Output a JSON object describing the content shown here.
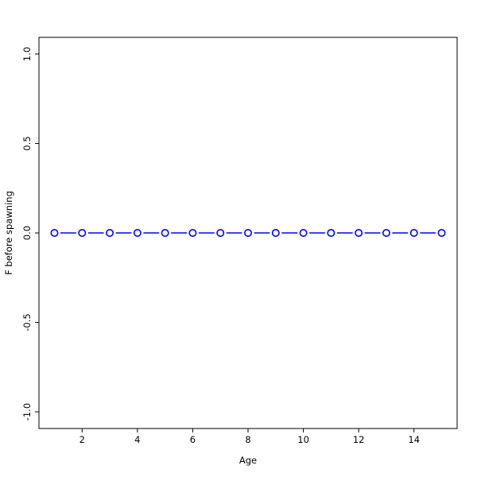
{
  "chart_data": {
    "type": "line",
    "title": "",
    "xlabel": "Age",
    "ylabel": "F before spawning",
    "x": [
      1,
      2,
      3,
      4,
      5,
      6,
      7,
      8,
      9,
      10,
      11,
      12,
      13,
      14,
      15
    ],
    "series": [
      {
        "name": "F before spawning",
        "values": [
          0,
          0,
          0,
          0,
          0,
          0,
          0,
          0,
          0,
          0,
          0,
          0,
          0,
          0,
          0
        ]
      }
    ],
    "xticks": [
      2,
      4,
      6,
      8,
      10,
      12,
      14
    ],
    "xtick_labels": [
      "2",
      "4",
      "6",
      "8",
      "10",
      "12",
      "14"
    ],
    "yticks": [
      -1.0,
      -0.5,
      0.0,
      0.5,
      1.0
    ],
    "ytick_labels": [
      "-1.0",
      "-0.5",
      "0.0",
      "0.5",
      "1.0"
    ],
    "xlim": [
      0.44,
      15.56
    ],
    "ylim": [
      -1.093,
      1.093
    ],
    "grid": false,
    "legend": "none",
    "marker": "open-circle",
    "line_color": "#0000ff",
    "axis_color": "#000000",
    "background_color": "#ffffff"
  }
}
